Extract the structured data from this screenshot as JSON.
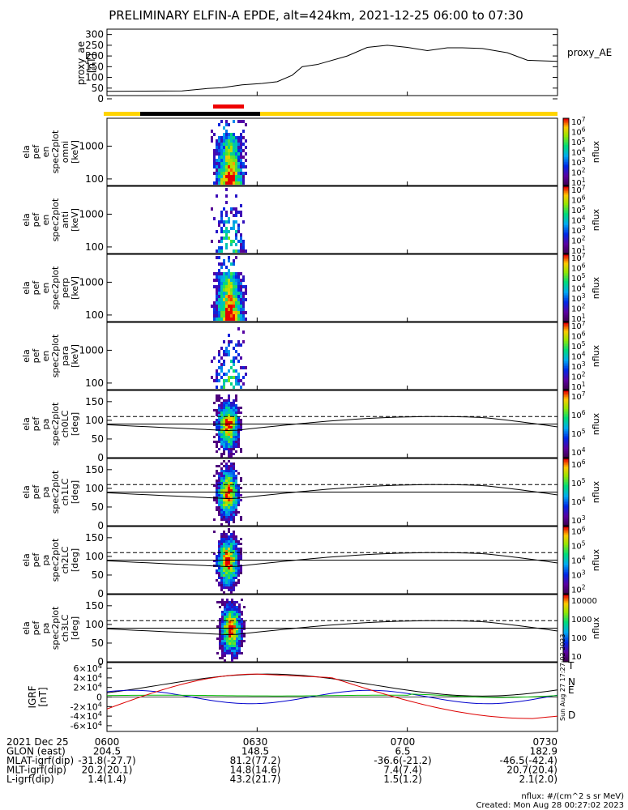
{
  "title": "PRELIMINARY ELFIN-A EPDE, alt=424km, 2021-12-25 06:00 to 07:30",
  "chart_data": {
    "type": "multi-panel spectrogram",
    "time_range": [
      "06:00",
      "07:30"
    ],
    "x_ticks": [
      "0600",
      "0630",
      "0700",
      "0730"
    ],
    "panels": [
      {
        "id": "proxy_ae",
        "type": "line",
        "ylabel": [
          "proxy_ae",
          "[nT]"
        ],
        "yticks": [
          "0",
          "50",
          "100",
          "150",
          "200",
          "250",
          "300"
        ],
        "ylim": [
          0,
          310
        ],
        "legend": "proxy_AE",
        "x_minutes": [
          0,
          15,
          20,
          23,
          27,
          31,
          34,
          37,
          39,
          42,
          48,
          52,
          56,
          60,
          64,
          68,
          71,
          75,
          80,
          84,
          86,
          90
        ],
        "values": [
          35,
          37,
          48,
          52,
          65,
          72,
          80,
          110,
          150,
          160,
          200,
          240,
          250,
          240,
          225,
          238,
          238,
          235,
          215,
          180,
          178,
          175
        ]
      },
      {
        "id": "omni",
        "type": "spectrogram",
        "ylabel": [
          "ela",
          "pef",
          "en",
          "spec2plot",
          "omni",
          "[keV]"
        ],
        "yticks": [
          "100",
          "1000"
        ],
        "zlabel": "nflux",
        "zticks": [
          "10^1",
          "10^2",
          "10^3",
          "10^4",
          "10^5",
          "10^6",
          "10^7"
        ]
      },
      {
        "id": "anti",
        "type": "spectrogram",
        "ylabel": [
          "ela",
          "pef",
          "en",
          "spec2plot",
          "anti",
          "[keV]"
        ],
        "yticks": [
          "100",
          "1000"
        ],
        "zlabel": "nflux",
        "zticks": [
          "10^1",
          "10^2",
          "10^3",
          "10^4",
          "10^5",
          "10^6",
          "10^7"
        ]
      },
      {
        "id": "perp",
        "type": "spectrogram",
        "ylabel": [
          "ela",
          "pef",
          "en",
          "spec2plot",
          "perp",
          "[keV]"
        ],
        "yticks": [
          "100",
          "1000"
        ],
        "zlabel": "nflux",
        "zticks": [
          "10^1",
          "10^2",
          "10^3",
          "10^4",
          "10^5",
          "10^6",
          "10^7"
        ]
      },
      {
        "id": "para",
        "type": "spectrogram",
        "ylabel": [
          "ela",
          "pef",
          "en",
          "spec2plot",
          "para",
          "[keV]"
        ],
        "yticks": [
          "100",
          "1000"
        ],
        "zlabel": "nflux",
        "zticks": [
          "10^1",
          "10^2",
          "10^3",
          "10^4",
          "10^5",
          "10^6",
          "10^7"
        ]
      },
      {
        "id": "ch0LC",
        "type": "spectrogram",
        "ylabel": [
          "ela",
          "pef",
          "pa",
          "spec2plot",
          "ch0LC",
          "[deg]"
        ],
        "yticks": [
          "0",
          "50",
          "100",
          "150"
        ],
        "zlabel": "nflux",
        "zticks": [
          "10^4",
          "10^5",
          "10^6",
          "10^7"
        ]
      },
      {
        "id": "ch1LC",
        "type": "spectrogram",
        "ylabel": [
          "ela",
          "pef",
          "pa",
          "spec2plot",
          "ch1LC",
          "[deg]"
        ],
        "yticks": [
          "0",
          "50",
          "100",
          "150"
        ],
        "zlabel": "nflux",
        "zticks": [
          "10^3",
          "10^4",
          "10^5",
          "10^6"
        ]
      },
      {
        "id": "ch2LC",
        "type": "spectrogram",
        "ylabel": [
          "ela",
          "pef",
          "pa",
          "spec2plot",
          "ch2LC",
          "[deg]"
        ],
        "yticks": [
          "0",
          "50",
          "100",
          "150"
        ],
        "zlabel": "nflux",
        "zticks": [
          "10^2",
          "10^3",
          "10^4",
          "10^5",
          "10^6"
        ]
      },
      {
        "id": "ch3LC",
        "type": "spectrogram",
        "ylabel": [
          "ela",
          "pef",
          "pa",
          "spec2plot",
          "ch3LC",
          "[deg]"
        ],
        "yticks": [
          "0",
          "50",
          "100",
          "150"
        ],
        "zlabel": "nflux",
        "zticks": [
          "10",
          "100",
          "1000",
          "10000"
        ]
      },
      {
        "id": "igrf",
        "type": "line",
        "ylabel": [
          "IGRF",
          "[nT]"
        ],
        "yticks": [
          "-6×10^4",
          "-4×10^4",
          "-2×10^4",
          "0",
          "2×10^4",
          "4×10^4",
          "6×10^4"
        ],
        "legend": [
          "T",
          "N",
          "E",
          "D"
        ],
        "colors": [
          "#000000",
          "#0000cc",
          "#00bb00",
          "#dd0000"
        ]
      }
    ]
  },
  "footer": {
    "rows": [
      {
        "label": "2021 Dec 25",
        "values": [
          "0600",
          "0630",
          "0700",
          "0730"
        ]
      },
      {
        "label": "GLON (east)",
        "values": [
          "204.5",
          "148.5",
          "6.5",
          "182.9"
        ]
      },
      {
        "label": "MLAT-igrf(dip)",
        "values": [
          "-31.8(-27.7)",
          "81.2(77.2)",
          "-36.6(-21.2)",
          "-46.5(-42.4)"
        ]
      },
      {
        "label": "MLT-igrf(dip)",
        "values": [
          "20.2(20.1)",
          "14.8(14.6)",
          "7.4(7.4)",
          "20.7(20.4)"
        ]
      },
      {
        "label": "L-igrf(dip)",
        "values": [
          "1.4(1.4)",
          "43.2(21.7)",
          "1.5(1.2)",
          "2.1(2.0)"
        ]
      }
    ],
    "units_note": "nflux: #/(cm^2 s sr MeV)",
    "created": "Created: Mon Aug 28 00:27:02 2023",
    "side_stamp": "Sun Aug 27 17:27:02 2023"
  },
  "colors": {
    "orbit_bar": "#ffd400",
    "orbit_segment": "#000000",
    "science_zone": "#ee0000"
  }
}
